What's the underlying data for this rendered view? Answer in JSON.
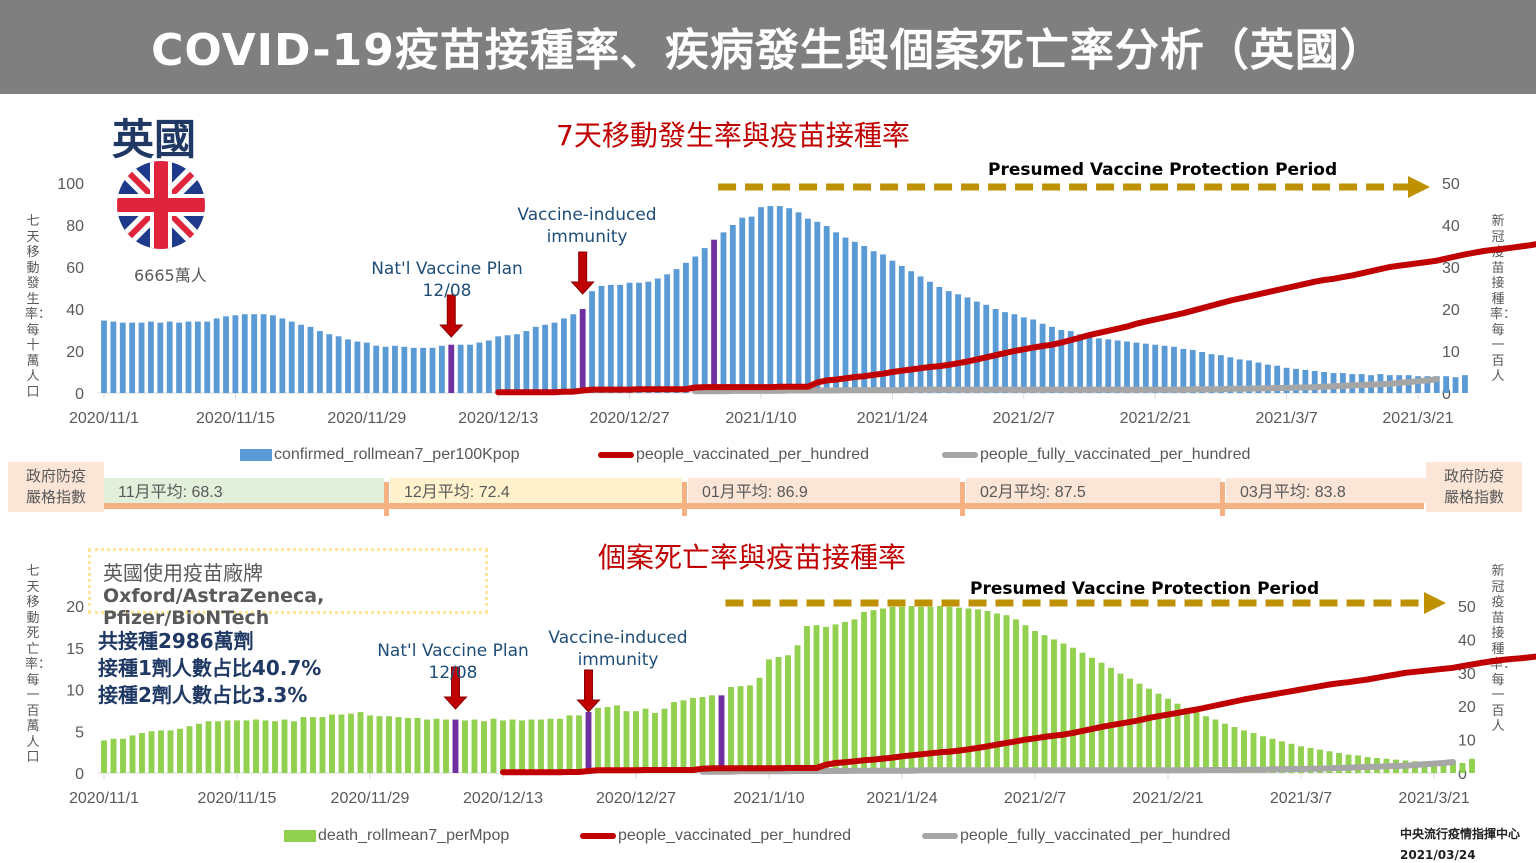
{
  "header": {
    "title": "COVID-19疫苗接種率、疾病發生與個案死亡率分析（英國）"
  },
  "country": {
    "name": "英國",
    "population": "6665萬人",
    "flag_icon": "uk-flag-icon"
  },
  "colors": {
    "header_bg": "#7f7f7f",
    "confirmed_bar": "#5b9bd5",
    "death_bar": "#92d050",
    "highlight_bar": "#7030a0",
    "vaccinated_line": "#c00000",
    "fully_vaccinated_line": "#a6a6a6",
    "protection_arrow": "#bf9000",
    "annotation_arrow": "#c00000"
  },
  "stringency": {
    "label": "政府防疫嚴格指數",
    "segments": [
      {
        "label": "11月平均: 68.3",
        "value": 68.3,
        "color": "#e2efda"
      },
      {
        "label": "12月平均: 72.4",
        "value": 72.4,
        "color": "#fff2cc"
      },
      {
        "label": "01月平均: 86.9",
        "value": 86.9,
        "color": "#fbe5d6"
      },
      {
        "label": "02月平均: 87.5",
        "value": 87.5,
        "color": "#fbe5d6"
      },
      {
        "label": "03月平均: 83.8",
        "value": 83.8,
        "color": "#fbe5d6"
      }
    ]
  },
  "brands": {
    "title": "英國使用疫苗廠牌",
    "list": "Oxford/AstraZeneca, Pfizer/BioNTech"
  },
  "stats": {
    "total_doses": "共接種2986萬劑",
    "first_dose": "接種1劑人數占比40.7%",
    "second_dose": "接種2劑人數占比3.3%"
  },
  "footer": {
    "org": "中央流行疫情指揮中心",
    "date": "2021/03/24"
  },
  "chart_data": [
    {
      "type": "bar",
      "title": "7天移動發生率與疫苗接種率",
      "ylabel": "七天移動發生率：每十萬人口",
      "y2label": "新冠疫苗接種率：每一百人",
      "ylim": [
        0,
        100
      ],
      "y2lim": [
        0,
        50
      ],
      "yticks": [
        "0",
        "20",
        "40",
        "60",
        "80",
        "100"
      ],
      "y2ticks": [
        "0",
        "10",
        "20",
        "30",
        "40",
        "50"
      ],
      "x_start": "2020/11/1",
      "x_end": "2021/3/21",
      "xticks": [
        "2020/11/1",
        "2020/11/15",
        "2020/11/29",
        "2020/12/13",
        "2020/12/27",
        "2021/1/10",
        "2021/1/24",
        "2021/2/7",
        "2021/2/21",
        "2021/3/7",
        "2021/3/21"
      ],
      "legend": [
        "confirmed_rollmean7_per100Kpop",
        "people_vaccinated_per_hundred",
        "people_fully_vaccinated_per_hundred"
      ],
      "legend_position": "bottom",
      "annotations": [
        {
          "label": "Nat'l Vaccine Plan 12/08",
          "day_index": 37
        },
        {
          "label": "Vaccine-induced immunity",
          "day_index": 51
        },
        {
          "label": "",
          "day_index": 65
        }
      ],
      "protection_period": {
        "label": "Presumed Vaccine Protection Period",
        "start_day_index": 65
      },
      "series": [
        {
          "name": "confirmed_rollmean7_per100Kpop",
          "axis": "left",
          "values": [
            34.5,
            34,
            33.5,
            33.5,
            33.5,
            34,
            33.5,
            34,
            33.5,
            34,
            34,
            34,
            35.5,
            36.5,
            37,
            37.5,
            37.5,
            37.5,
            37,
            35.5,
            34,
            32.5,
            31.5,
            29.5,
            28,
            27,
            25.5,
            24.5,
            24,
            22.5,
            22,
            22.5,
            22,
            21.5,
            21.5,
            21.5,
            22.5,
            23,
            23,
            23,
            24,
            25,
            27,
            27.5,
            28,
            29.5,
            31.5,
            32.5,
            33.5,
            35.5,
            37.5,
            40,
            48.5,
            51,
            51.5,
            51.5,
            52.5,
            52.5,
            53,
            54.5,
            56.5,
            59,
            62,
            65,
            69,
            73,
            76.5,
            80,
            83.5,
            84,
            88.5,
            89,
            89,
            88,
            86,
            83,
            81.5,
            79.5,
            76.5,
            74,
            72,
            70,
            67.5,
            66,
            63,
            60.5,
            58,
            55.5,
            53,
            50.5,
            48.5,
            47,
            45.5,
            43.5,
            42,
            40,
            38.5,
            37.5,
            36,
            35,
            33,
            31.5,
            30,
            29.5,
            28,
            27,
            26,
            25.5,
            25,
            24.5,
            24,
            23.5,
            23,
            22.5,
            22,
            21,
            20.5,
            19.5,
            18.5,
            18,
            17,
            16,
            15.5,
            14.5,
            13.5,
            13,
            12,
            11.5,
            11,
            10.5,
            10,
            9.5,
            9.5,
            9,
            9,
            8.5,
            9,
            8.5,
            8.5,
            8.5,
            8,
            8,
            8,
            8,
            7.5,
            8.5
          ]
        },
        {
          "name": "people_vaccinated_per_hundred",
          "axis": "right",
          "start_day_index": 42,
          "values": [
            0.2,
            0.2,
            0.2,
            0.2,
            0.2,
            0.2,
            0.2,
            0.3,
            0.3,
            0.6,
            0.8,
            0.8,
            0.8,
            0.8,
            0.8,
            0.9,
            0.9,
            0.9,
            0.9,
            0.9,
            0.9,
            1.3,
            1.4,
            1.4,
            1.4,
            1.4,
            1.4,
            1.4,
            1.4,
            1.4,
            1.5,
            1.5,
            1.5,
            1.5,
            2.5,
            3,
            3.2,
            3.5,
            3.8,
            4,
            4.3,
            4.6,
            5,
            5.3,
            5.6,
            5.9,
            6.2,
            6.4,
            6.7,
            7.1,
            7.5,
            8,
            8.5,
            9,
            9.5,
            10,
            10.4,
            10.8,
            11.2,
            11.5,
            12,
            12.6,
            13.2,
            13.8,
            14.3,
            14.8,
            15.3,
            15.8,
            16.5,
            17,
            17.5,
            18,
            18.5,
            19,
            19.6,
            20.2,
            20.8,
            21.4,
            22,
            22.5,
            23,
            23.5,
            24,
            24.5,
            25,
            25.5,
            26,
            26.5,
            26.9,
            27.2,
            27.6,
            28,
            28.5,
            29,
            29.5,
            30,
            30.3,
            30.6,
            30.9,
            31.2,
            31.5,
            32,
            32.5,
            33,
            33.4,
            33.8,
            34.1,
            34.3,
            34.6,
            34.9,
            35.2,
            35.6,
            36,
            36.4,
            36.9,
            37.4,
            37.9,
            38.5,
            39.1,
            39.7,
            40.7
          ]
        },
        {
          "name": "people_fully_vaccinated_per_hundred",
          "axis": "right",
          "start_day_index": 63,
          "values": [
            0.4,
            0.4,
            0.4,
            0.4,
            0.5,
            0.5,
            0.5,
            0.5,
            0.5,
            0.5,
            0.6,
            0.6,
            0.6,
            0.6,
            0.6,
            0.6,
            0.7,
            0.7,
            0.7,
            0.7,
            0.7,
            0.7,
            0.7,
            0.8,
            0.8,
            0.8,
            0.8,
            0.8,
            0.8,
            0.8,
            0.8,
            0.8,
            0.8,
            0.8,
            0.8,
            0.8,
            0.8,
            0.8,
            0.8,
            0.8,
            0.8,
            0.8,
            0.8,
            0.8,
            0.8,
            0.8,
            0.8,
            0.8,
            0.8,
            0.8,
            0.8,
            0.8,
            0.8,
            0.9,
            0.9,
            0.9,
            0.9,
            1,
            1,
            1,
            1.1,
            1.1,
            1.2,
            1.2,
            1.3,
            1.3,
            1.4,
            1.5,
            1.6,
            1.7,
            1.8,
            1.9,
            2,
            2.1,
            2.2,
            2.4,
            2.6,
            2.8,
            3,
            3.3
          ]
        }
      ]
    },
    {
      "type": "bar",
      "title": "個案死亡率與疫苗接種率",
      "ylabel": "七天移動死亡率：每一百萬人口",
      "y2label": "新冠疫苗接種率：每一百人",
      "ylim": [
        0,
        20
      ],
      "y2lim": [
        0,
        50
      ],
      "yticks": [
        "0",
        "5",
        "10",
        "15",
        "20"
      ],
      "y2ticks": [
        "0",
        "10",
        "20",
        "30",
        "40",
        "50"
      ],
      "x_start": "2020/11/1",
      "x_end": "2021/3/21",
      "xticks": [
        "2020/11/1",
        "2020/11/15",
        "2020/11/29",
        "2020/12/13",
        "2020/12/27",
        "2021/1/10",
        "2021/1/24",
        "2021/2/7",
        "2021/2/21",
        "2021/3/7",
        "2021/3/21"
      ],
      "legend": [
        "death_rollmean7_perMpop",
        "people_vaccinated_per_hundred",
        "people_fully_vaccinated_per_hundred"
      ],
      "legend_position": "bottom",
      "annotations": [
        {
          "label": "Nat'l Vaccine Plan 12/08",
          "day_index": 37
        },
        {
          "label": "Vaccine-induced immunity",
          "day_index": 51
        },
        {
          "label": "",
          "day_index": 65
        }
      ],
      "protection_period": {
        "label": "Presumed Vaccine Protection Period",
        "start_day_index": 65
      },
      "series": [
        {
          "name": "death_rollmean7_perMpop",
          "axis": "left",
          "values": [
            3.9,
            4.1,
            4.1,
            4.5,
            4.8,
            5,
            5.1,
            5.1,
            5.3,
            5.6,
            5.9,
            6.2,
            6.2,
            6.3,
            6.3,
            6.3,
            6.4,
            6.3,
            6.2,
            6.4,
            6.2,
            6.7,
            6.7,
            6.7,
            7,
            7,
            7.1,
            7.3,
            6.9,
            6.8,
            6.8,
            6.7,
            6.6,
            6.6,
            6.4,
            6.5,
            6.4,
            6.4,
            6.3,
            6.4,
            6.2,
            6.5,
            6.3,
            6.4,
            6.3,
            6.4,
            6.4,
            6.5,
            6.5,
            6.9,
            6.9,
            7.3,
            7.8,
            7.9,
            8.1,
            7.4,
            7.4,
            7.7,
            7.2,
            7.7,
            8.5,
            8.7,
            9,
            9.1,
            9.3,
            9.3,
            10.3,
            10.4,
            10.5,
            11.4,
            13.6,
            13.9,
            14.1,
            15.3,
            17.6,
            17.7,
            17.5,
            17.8,
            18.1,
            18.4,
            19.3,
            19.5,
            19.7,
            19.9,
            19.9,
            20,
            19.9,
            19.9,
            20,
            19.9,
            19.8,
            19.7,
            19.6,
            19.4,
            19.1,
            18.9,
            18.4,
            17.7,
            17,
            16.5,
            16,
            15.5,
            15,
            14.4,
            13.8,
            13.2,
            12.6,
            11.9,
            11.3,
            10.7,
            10.1,
            9.5,
            8.9,
            8.3,
            7.8,
            7.3,
            6.8,
            6.4,
            5.9,
            5.5,
            5.1,
            4.8,
            4.4,
            4.1,
            3.8,
            3.5,
            3.2,
            3,
            2.8,
            2.6,
            2.4,
            2.2,
            2.1,
            1.9,
            1.8,
            1.7,
            1.6,
            1.5,
            1.4,
            1.4,
            1.3,
            1.3,
            1.3,
            1.2,
            1.7
          ]
        },
        {
          "name": "people_vaccinated_per_hundred",
          "axis": "right",
          "start_day_index": 42,
          "values": [
            0.2,
            0.2,
            0.2,
            0.2,
            0.2,
            0.2,
            0.2,
            0.3,
            0.3,
            0.6,
            0.8,
            0.8,
            0.8,
            0.8,
            0.8,
            0.9,
            0.9,
            0.9,
            0.9,
            0.9,
            0.9,
            1.3,
            1.4,
            1.4,
            1.4,
            1.4,
            1.4,
            1.4,
            1.4,
            1.4,
            1.5,
            1.5,
            1.5,
            1.5,
            2.5,
            3,
            3.2,
            3.5,
            3.8,
            4,
            4.3,
            4.6,
            5,
            5.3,
            5.6,
            5.9,
            6.2,
            6.4,
            6.7,
            7.1,
            7.5,
            8,
            8.5,
            9,
            9.5,
            10,
            10.4,
            10.8,
            11.2,
            11.5,
            12,
            12.6,
            13.2,
            13.8,
            14.3,
            14.8,
            15.3,
            15.8,
            16.5,
            17,
            17.5,
            18,
            18.5,
            19,
            19.6,
            20.2,
            20.8,
            21.4,
            22,
            22.5,
            23,
            23.5,
            24,
            24.5,
            25,
            25.5,
            26,
            26.5,
            26.9,
            27.2,
            27.6,
            28,
            28.5,
            29,
            29.5,
            30,
            30.3,
            30.6,
            30.9,
            31.2,
            31.5,
            32,
            32.5,
            33,
            33.4,
            33.8,
            34.1,
            34.3,
            34.6,
            34.9,
            35.2,
            35.6,
            36,
            36.4,
            36.9,
            37.4,
            37.9,
            38.5,
            39.1,
            39.7,
            40.7
          ]
        },
        {
          "name": "people_fully_vaccinated_per_hundred",
          "axis": "right",
          "start_day_index": 63,
          "values": [
            0.4,
            0.4,
            0.4,
            0.4,
            0.5,
            0.5,
            0.5,
            0.5,
            0.5,
            0.5,
            0.6,
            0.6,
            0.6,
            0.6,
            0.6,
            0.6,
            0.7,
            0.7,
            0.7,
            0.7,
            0.7,
            0.7,
            0.7,
            0.8,
            0.8,
            0.8,
            0.8,
            0.8,
            0.8,
            0.8,
            0.8,
            0.8,
            0.8,
            0.8,
            0.8,
            0.8,
            0.8,
            0.8,
            0.8,
            0.8,
            0.8,
            0.8,
            0.8,
            0.8,
            0.8,
            0.8,
            0.8,
            0.8,
            0.8,
            0.8,
            0.8,
            0.8,
            0.8,
            0.9,
            0.9,
            0.9,
            0.9,
            1,
            1,
            1,
            1.1,
            1.1,
            1.2,
            1.2,
            1.3,
            1.3,
            1.4,
            1.5,
            1.6,
            1.7,
            1.8,
            1.9,
            2,
            2.1,
            2.2,
            2.4,
            2.6,
            2.8,
            3,
            3.3
          ]
        }
      ]
    }
  ]
}
